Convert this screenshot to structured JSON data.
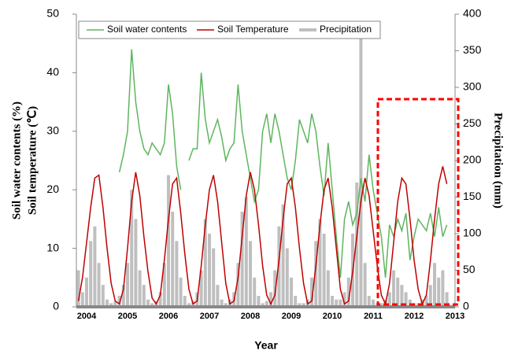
{
  "chart_data": {
    "type": "line",
    "x_label": "Year",
    "y_label": [
      "Soil water contents (%)",
      "Soil temperature (℃)"
    ],
    "y2_label": "Precipitation (mm)",
    "x": [
      2003.8,
      2003.9,
      2004.0,
      2004.1,
      2004.2,
      2004.3,
      2004.4,
      2004.5,
      2004.6,
      2004.7,
      2004.8,
      2004.9,
      2005.0,
      2005.1,
      2005.2,
      2005.3,
      2005.4,
      2005.5,
      2005.6,
      2005.7,
      2005.8,
      2005.9,
      2006.0,
      2006.1,
      2006.2,
      2006.3,
      2006.4,
      2006.5,
      2006.6,
      2006.7,
      2006.8,
      2006.9,
      2007.0,
      2007.1,
      2007.2,
      2007.3,
      2007.4,
      2007.5,
      2007.6,
      2007.7,
      2007.8,
      2007.9,
      2008.0,
      2008.1,
      2008.2,
      2008.3,
      2008.4,
      2008.5,
      2008.6,
      2008.7,
      2008.8,
      2008.9,
      2009.0,
      2009.1,
      2009.2,
      2009.3,
      2009.4,
      2009.5,
      2009.6,
      2009.7,
      2009.8,
      2009.9,
      2010.0,
      2010.1,
      2010.2,
      2010.3,
      2010.4,
      2010.5,
      2010.6,
      2010.7,
      2010.8,
      2010.9,
      2011.0,
      2011.1,
      2011.2,
      2011.3,
      2011.4,
      2011.5,
      2011.6,
      2011.7,
      2011.8,
      2011.9,
      2012.0,
      2012.1,
      2012.2,
      2012.3,
      2012.4,
      2012.5,
      2012.6,
      2012.7,
      2012.8
    ],
    "series": [
      {
        "name": "Precipitation",
        "type": "bar",
        "axis": "y2",
        "color": "#bfbfbf",
        "values": [
          50,
          20,
          40,
          90,
          110,
          60,
          30,
          10,
          5,
          8,
          15,
          30,
          60,
          160,
          120,
          50,
          30,
          10,
          5,
          8,
          20,
          60,
          180,
          130,
          90,
          40,
          15,
          5,
          8,
          20,
          50,
          120,
          100,
          80,
          30,
          10,
          5,
          10,
          20,
          60,
          130,
          150,
          90,
          40,
          15,
          5,
          8,
          20,
          50,
          110,
          140,
          80,
          40,
          15,
          5,
          5,
          10,
          40,
          90,
          120,
          100,
          50,
          15,
          10,
          10,
          20,
          40,
          100,
          170,
          370,
          60,
          15,
          10,
          5,
          5,
          10,
          20,
          50,
          40,
          30,
          20,
          10,
          5,
          5,
          10,
          15,
          30,
          60,
          40,
          50,
          20
        ]
      },
      {
        "name": "Soil water contents",
        "type": "line",
        "axis": "y",
        "color": "#5fb55f",
        "values": [
          null,
          null,
          null,
          null,
          null,
          null,
          null,
          null,
          null,
          null,
          23,
          26,
          30,
          44,
          35,
          30,
          27,
          26,
          28,
          27,
          26,
          28,
          38,
          33,
          24,
          20,
          null,
          25,
          27,
          27,
          40,
          32,
          28,
          30,
          32,
          29,
          25,
          27,
          28,
          38,
          30,
          26,
          22,
          18,
          20,
          30,
          33,
          28,
          33,
          30,
          26,
          22,
          20,
          25,
          32,
          30,
          28,
          33,
          30,
          24,
          19,
          28,
          20,
          12,
          5,
          15,
          18,
          14,
          16,
          22,
          18,
          26,
          20,
          16,
          12,
          5,
          14,
          12,
          15,
          13,
          16,
          8,
          12,
          15,
          14,
          13,
          16,
          12,
          17,
          12,
          14
        ]
      },
      {
        "name": "Soil Temperature",
        "type": "line",
        "axis": "y",
        "color": "#c00000",
        "values": [
          1,
          5,
          11,
          17,
          22,
          22.5,
          17,
          10,
          4,
          1,
          0.5,
          3,
          10,
          18,
          23,
          19,
          12,
          6,
          1.5,
          0.5,
          2,
          8,
          15,
          21,
          22,
          16,
          9,
          3,
          0.5,
          1,
          7,
          14,
          20,
          22.5,
          18,
          11,
          4,
          0.5,
          1,
          5,
          12,
          19,
          23,
          20,
          14,
          7,
          2,
          0.5,
          2,
          8,
          15,
          21,
          22,
          17,
          10,
          4,
          0.5,
          1,
          7,
          14,
          20,
          22,
          17,
          10,
          3,
          0.5,
          1,
          6,
          12,
          18,
          22,
          19,
          13,
          7,
          2,
          0.5,
          4,
          11,
          18,
          22,
          21,
          15,
          8,
          3,
          0.5,
          2,
          8,
          15,
          21,
          24,
          21
        ]
      }
    ],
    "xlim": [
      2003.75,
      2013.0
    ],
    "xticks": [
      2004,
      2005,
      2006,
      2007,
      2008,
      2009,
      2010,
      2011,
      2012,
      2013
    ],
    "ylim": [
      0,
      50
    ],
    "yticks": [
      0,
      10,
      20,
      30,
      40,
      50
    ],
    "y2lim": [
      0,
      400
    ],
    "y2ticks": [
      0,
      50,
      100,
      150,
      200,
      250,
      300,
      350,
      400
    ],
    "legend": "top"
  }
}
